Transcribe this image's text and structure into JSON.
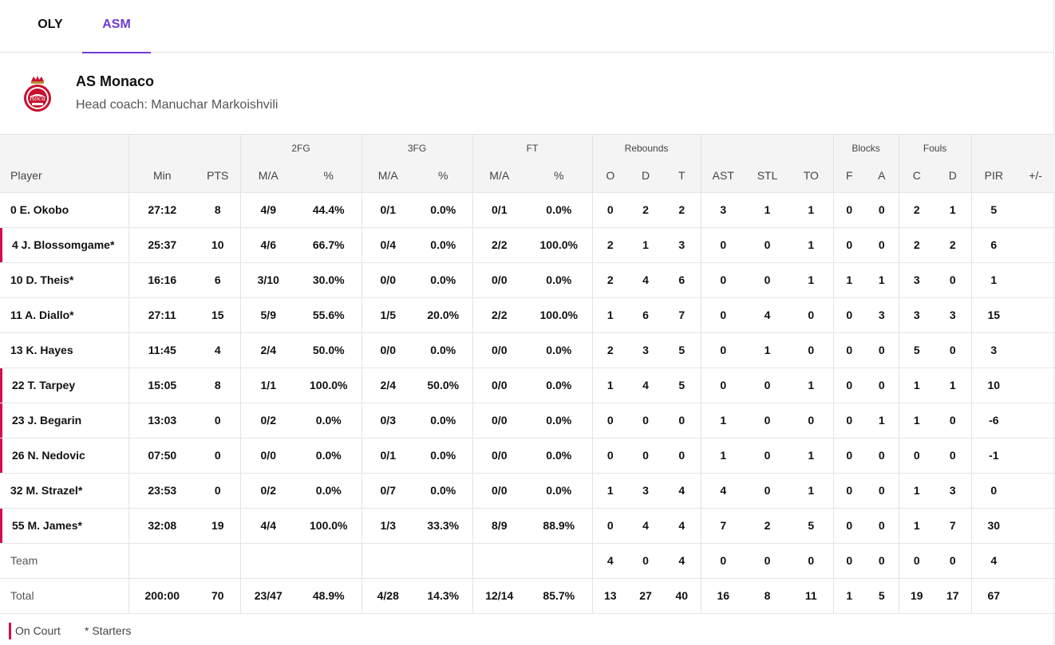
{
  "tabs": [
    {
      "label": "OLY",
      "active": false
    },
    {
      "label": "ASM",
      "active": true
    }
  ],
  "team": {
    "name": "AS Monaco",
    "coach": "Head coach: Manuchar Markoishvili",
    "logo_icon": "as-monaco-crest-icon"
  },
  "table": {
    "groups": {
      "fg2": "2FG",
      "fg3": "3FG",
      "ft": "FT",
      "rebounds": "Rebounds",
      "blocks": "Blocks",
      "fouls": "Fouls"
    },
    "columns": {
      "player": "Player",
      "min": "Min",
      "pts": "PTS",
      "fg2_ma": "M/A",
      "fg2_pct": "%",
      "fg3_ma": "M/A",
      "fg3_pct": "%",
      "ft_ma": "M/A",
      "ft_pct": "%",
      "reb_o": "O",
      "reb_d": "D",
      "reb_t": "T",
      "ast": "AST",
      "stl": "STL",
      "to": "TO",
      "blk_f": "F",
      "blk_a": "A",
      "foul_c": "C",
      "foul_d": "D",
      "pir": "PIR",
      "pm": "+/-"
    },
    "rows": [
      {
        "player": "0 E. Okobo",
        "oncourt": false,
        "min": "27:12",
        "pts": "8",
        "fg2_ma": "4/9",
        "fg2_pct": "44.4%",
        "fg3_ma": "0/1",
        "fg3_pct": "0.0%",
        "ft_ma": "0/1",
        "ft_pct": "0.0%",
        "reb_o": "0",
        "reb_d": "2",
        "reb_t": "2",
        "ast": "3",
        "stl": "1",
        "to": "1",
        "blk_f": "0",
        "blk_a": "0",
        "foul_c": "2",
        "foul_d": "1",
        "pir": "5",
        "pm": ""
      },
      {
        "player": "4 J. Blossomgame*",
        "oncourt": true,
        "min": "25:37",
        "pts": "10",
        "fg2_ma": "4/6",
        "fg2_pct": "66.7%",
        "fg3_ma": "0/4",
        "fg3_pct": "0.0%",
        "ft_ma": "2/2",
        "ft_pct": "100.0%",
        "reb_o": "2",
        "reb_d": "1",
        "reb_t": "3",
        "ast": "0",
        "stl": "0",
        "to": "1",
        "blk_f": "0",
        "blk_a": "0",
        "foul_c": "2",
        "foul_d": "2",
        "pir": "6",
        "pm": ""
      },
      {
        "player": "10 D. Theis*",
        "oncourt": false,
        "min": "16:16",
        "pts": "6",
        "fg2_ma": "3/10",
        "fg2_pct": "30.0%",
        "fg3_ma": "0/0",
        "fg3_pct": "0.0%",
        "ft_ma": "0/0",
        "ft_pct": "0.0%",
        "reb_o": "2",
        "reb_d": "4",
        "reb_t": "6",
        "ast": "0",
        "stl": "0",
        "to": "1",
        "blk_f": "1",
        "blk_a": "1",
        "foul_c": "3",
        "foul_d": "0",
        "pir": "1",
        "pm": ""
      },
      {
        "player": "11 A. Diallo*",
        "oncourt": false,
        "min": "27:11",
        "pts": "15",
        "fg2_ma": "5/9",
        "fg2_pct": "55.6%",
        "fg3_ma": "1/5",
        "fg3_pct": "20.0%",
        "ft_ma": "2/2",
        "ft_pct": "100.0%",
        "reb_o": "1",
        "reb_d": "6",
        "reb_t": "7",
        "ast": "0",
        "stl": "4",
        "to": "0",
        "blk_f": "0",
        "blk_a": "3",
        "foul_c": "3",
        "foul_d": "3",
        "pir": "15",
        "pm": ""
      },
      {
        "player": "13 K. Hayes",
        "oncourt": false,
        "min": "11:45",
        "pts": "4",
        "fg2_ma": "2/4",
        "fg2_pct": "50.0%",
        "fg3_ma": "0/0",
        "fg3_pct": "0.0%",
        "ft_ma": "0/0",
        "ft_pct": "0.0%",
        "reb_o": "2",
        "reb_d": "3",
        "reb_t": "5",
        "ast": "0",
        "stl": "1",
        "to": "0",
        "blk_f": "0",
        "blk_a": "0",
        "foul_c": "5",
        "foul_d": "0",
        "pir": "3",
        "pm": ""
      },
      {
        "player": "22 T. Tarpey",
        "oncourt": true,
        "min": "15:05",
        "pts": "8",
        "fg2_ma": "1/1",
        "fg2_pct": "100.0%",
        "fg3_ma": "2/4",
        "fg3_pct": "50.0%",
        "ft_ma": "0/0",
        "ft_pct": "0.0%",
        "reb_o": "1",
        "reb_d": "4",
        "reb_t": "5",
        "ast": "0",
        "stl": "0",
        "to": "1",
        "blk_f": "0",
        "blk_a": "0",
        "foul_c": "1",
        "foul_d": "1",
        "pir": "10",
        "pm": ""
      },
      {
        "player": "23 J. Begarin",
        "oncourt": true,
        "min": "13:03",
        "pts": "0",
        "fg2_ma": "0/2",
        "fg2_pct": "0.0%",
        "fg3_ma": "0/3",
        "fg3_pct": "0.0%",
        "ft_ma": "0/0",
        "ft_pct": "0.0%",
        "reb_o": "0",
        "reb_d": "0",
        "reb_t": "0",
        "ast": "1",
        "stl": "0",
        "to": "0",
        "blk_f": "0",
        "blk_a": "1",
        "foul_c": "1",
        "foul_d": "0",
        "pir": "-6",
        "pm": ""
      },
      {
        "player": "26 N. Nedovic",
        "oncourt": true,
        "min": "07:50",
        "pts": "0",
        "fg2_ma": "0/0",
        "fg2_pct": "0.0%",
        "fg3_ma": "0/1",
        "fg3_pct": "0.0%",
        "ft_ma": "0/0",
        "ft_pct": "0.0%",
        "reb_o": "0",
        "reb_d": "0",
        "reb_t": "0",
        "ast": "1",
        "stl": "0",
        "to": "1",
        "blk_f": "0",
        "blk_a": "0",
        "foul_c": "0",
        "foul_d": "0",
        "pir": "-1",
        "pm": ""
      },
      {
        "player": "32 M. Strazel*",
        "oncourt": false,
        "min": "23:53",
        "pts": "0",
        "fg2_ma": "0/2",
        "fg2_pct": "0.0%",
        "fg3_ma": "0/7",
        "fg3_pct": "0.0%",
        "ft_ma": "0/0",
        "ft_pct": "0.0%",
        "reb_o": "1",
        "reb_d": "3",
        "reb_t": "4",
        "ast": "4",
        "stl": "0",
        "to": "1",
        "blk_f": "0",
        "blk_a": "0",
        "foul_c": "1",
        "foul_d": "3",
        "pir": "0",
        "pm": ""
      },
      {
        "player": "55 M. James*",
        "oncourt": true,
        "min": "32:08",
        "pts": "19",
        "fg2_ma": "4/4",
        "fg2_pct": "100.0%",
        "fg3_ma": "1/3",
        "fg3_pct": "33.3%",
        "ft_ma": "8/9",
        "ft_pct": "88.9%",
        "reb_o": "0",
        "reb_d": "4",
        "reb_t": "4",
        "ast": "7",
        "stl": "2",
        "to": "5",
        "blk_f": "0",
        "blk_a": "0",
        "foul_c": "1",
        "foul_d": "7",
        "pir": "30",
        "pm": ""
      }
    ],
    "team_row": {
      "player": "Team",
      "min": "",
      "pts": "",
      "fg2_ma": "",
      "fg2_pct": "",
      "fg3_ma": "",
      "fg3_pct": "",
      "ft_ma": "",
      "ft_pct": "",
      "reb_o": "4",
      "reb_d": "0",
      "reb_t": "4",
      "ast": "0",
      "stl": "0",
      "to": "0",
      "blk_f": "0",
      "blk_a": "0",
      "foul_c": "0",
      "foul_d": "0",
      "pir": "4",
      "pm": ""
    },
    "total_row": {
      "player": "Total",
      "min": "200:00",
      "pts": "70",
      "fg2_ma": "23/47",
      "fg2_pct": "48.9%",
      "fg3_ma": "4/28",
      "fg3_pct": "14.3%",
      "ft_ma": "12/14",
      "ft_pct": "85.7%",
      "reb_o": "13",
      "reb_d": "27",
      "reb_t": "40",
      "ast": "16",
      "stl": "8",
      "to": "11",
      "blk_f": "1",
      "blk_a": "5",
      "foul_c": "19",
      "foul_d": "17",
      "pir": "67",
      "pm": ""
    }
  },
  "legend": {
    "on_court": "On Court",
    "starters": "* Starters",
    "on_court_color": "#d40e4b"
  },
  "colors": {
    "accent": "#6f3ad6",
    "on_court": "#d40e4b",
    "header_bg": "#f4f4f5"
  }
}
